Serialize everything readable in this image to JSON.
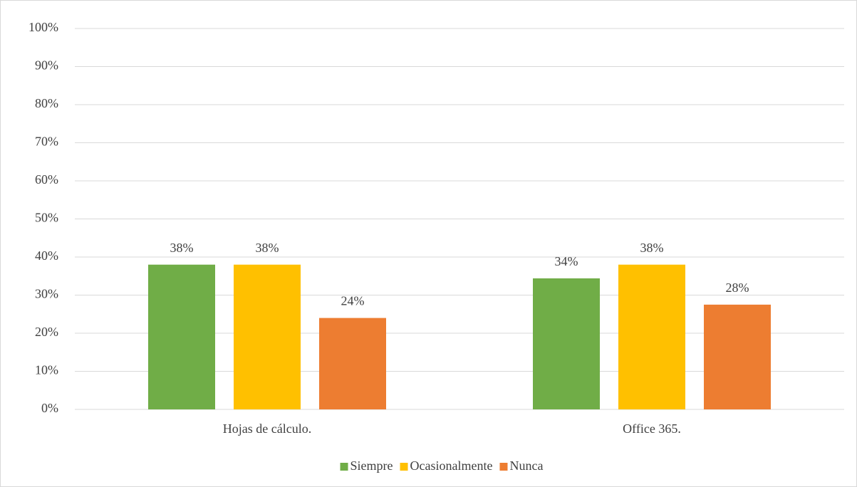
{
  "chart_data": {
    "type": "bar",
    "categories": [
      "Hojas de cálculo.",
      "Office 365."
    ],
    "series": [
      {
        "name": "Siempre",
        "color": "#70ad47",
        "values": [
          38,
          34.4
        ],
        "value_labels": [
          "38%",
          "34%"
        ]
      },
      {
        "name": "Ocasionalmente",
        "color": "#ffc000",
        "values": [
          38,
          38
        ],
        "value_labels": [
          "38%",
          "38%"
        ]
      },
      {
        "name": "Nunca",
        "color": "#ed7d31",
        "values": [
          24,
          27.5
        ],
        "value_labels": [
          "24%",
          "28%"
        ]
      }
    ],
    "ylim": [
      0,
      100
    ],
    "yticks": [
      {
        "value": 0,
        "label": "0%"
      },
      {
        "value": 10,
        "label": "10%"
      },
      {
        "value": 20,
        "label": "20%"
      },
      {
        "value": 30,
        "label": "30%"
      },
      {
        "value": 40,
        "label": "40%"
      },
      {
        "value": 50,
        "label": "50%"
      },
      {
        "value": 60,
        "label": "60%"
      },
      {
        "value": 70,
        "label": "70%"
      },
      {
        "value": 80,
        "label": "80%"
      },
      {
        "value": 90,
        "label": "90%"
      },
      {
        "value": 100,
        "label": "100%"
      }
    ],
    "grid": true,
    "legend": "bottom"
  }
}
